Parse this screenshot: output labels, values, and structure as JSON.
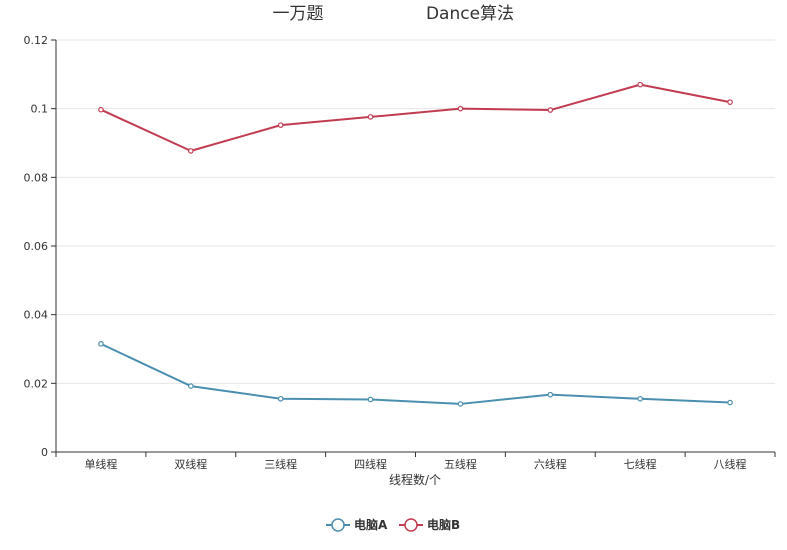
{
  "chart_data": {
    "type": "line",
    "title": "一万题",
    "subtitle": "Dance算法",
    "xlabel": "线程数/个",
    "ylabel": "",
    "categories": [
      "单线程",
      "双线程",
      "三线程",
      "四线程",
      "五线程",
      "六线程",
      "七线程",
      "八线程"
    ],
    "ylim": [
      0,
      0.12
    ],
    "yticks": [
      0,
      0.02,
      0.04,
      0.06,
      0.08,
      0.1,
      0.12
    ],
    "grid": true,
    "legend_position": "bottom-center",
    "series": [
      {
        "name": "电脑A",
        "color": "#4a8fb0",
        "values": [
          0.0315,
          0.0192,
          0.0155,
          0.0153,
          0.014,
          0.0167,
          0.0155,
          0.0144
        ]
      },
      {
        "name": "电脑B",
        "color": "#c23b51",
        "values": [
          0.0997,
          0.0877,
          0.0952,
          0.0976,
          0.1,
          0.0996,
          0.107,
          0.1019
        ]
      }
    ]
  }
}
